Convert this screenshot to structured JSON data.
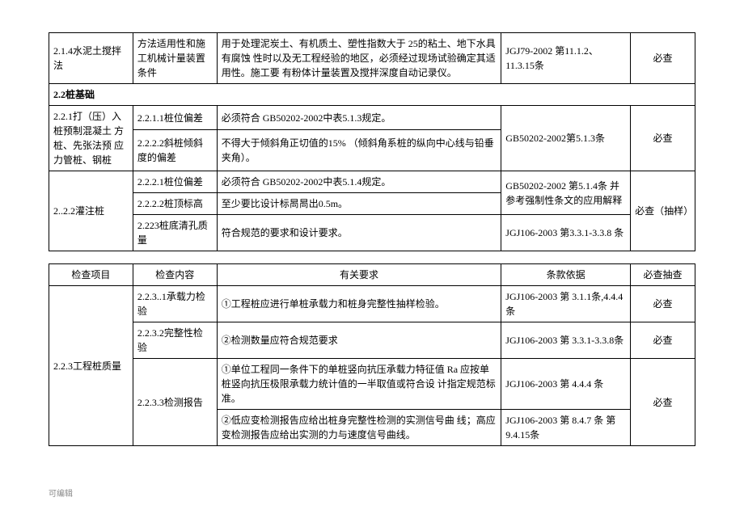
{
  "table1": {
    "rows": [
      {
        "item": "2.1.4水泥土搅拌法",
        "content": "方法适用性和施 工机械计量装置  条件",
        "requirement": "用于处理泥炭土、有机质土、塑性指数大于 25的粘土、地下水具有腐蚀  性时以及无工程经验的地区，必须经过现场试验确定其适用性。施工要  有粉体计量装置及搅拌深度自动记录仪。",
        "basis": "JGJ79-2002 第11.1.2、11.3.15条",
        "check": "必查"
      }
    ],
    "section_2_2": "2.2桩基础",
    "group_2_2_1": {
      "item": "2.2.1打（压）入桩预制混凝土 方桩、先张法预 应力管桩、钢桩",
      "rows": [
        {
          "content": "2.2.1.1桩位偏差",
          "requirement": "必须符合  GB50202-2002中表5.1.3规定。",
          "basis": "GB50202-2002第5.1.3条",
          "check": "必查"
        },
        {
          "content": "2.2.2.2斜桩倾斜度的偏差",
          "requirement": "不得大于倾斜角正切值的15%  （倾斜角系桩的纵向中心线与铅垂夹角）。"
        }
      ]
    },
    "group_2_2_2": {
      "item": "2..2.2灌注桩",
      "rows": [
        {
          "content": "2.2.2.1桩位偏差",
          "requirement": "必须符合  GB50202-2002中表5.1.4规定。",
          "basis": "GB50202-2002 第5.1.4条 并参考强制性条文的应用解释",
          "check": "必查（抽样）"
        },
        {
          "content": "2.2.2.2桩顶标高",
          "requirement": "至少要比设计标晑晑出0.5m。"
        },
        {
          "content": "2.223桩底清孔质量",
          "requirement": "符合规范的要求和设计要求。",
          "basis": "JGJ106-2003 第3.3.1-3.3.8 条"
        }
      ]
    }
  },
  "table2": {
    "headers": {
      "item": "检查项目",
      "content": "检查内容",
      "requirement": "有关要求",
      "basis": "条款依据",
      "check": "必查抽查"
    },
    "group": {
      "item": "2.2.3工程桩质量",
      "rows": [
        {
          "content": "2.2.3..1承载力检验",
          "requirement": "①工程桩应进行单桩承载力和桩身完整性抽样检验。",
          "basis": "JGJ106-2003         第 3.1.1条,4.4.4条",
          "check": "必查"
        },
        {
          "content": "2.2.3.2完整性检验",
          "requirement": "②检测数量应符合规范要求",
          "basis": "JGJ106-2003 第  3.3.1-3.3.8条",
          "check": "必查"
        },
        {
          "content": "2.2.3.3检测报告",
          "requirement": "①单位工程同一条件下的单桩竖向抗压承载力特征值        Ra 应按单桩竖向抗压极限承载力统计值的一半取值或符合设  计指定规范标准。",
          "basis": "JGJ106-2003 第  4.4.4 条",
          "check": "必查"
        },
        {
          "requirement": "②低应变检测报告应给出桩身完整性检测的实测信号曲  线；高应变检测报告应给出实测的力与速度信号曲线。",
          "basis": "JGJ106-2003 第  8.4.7 条               第9.4.15条"
        }
      ]
    }
  },
  "footer": "可编辑"
}
